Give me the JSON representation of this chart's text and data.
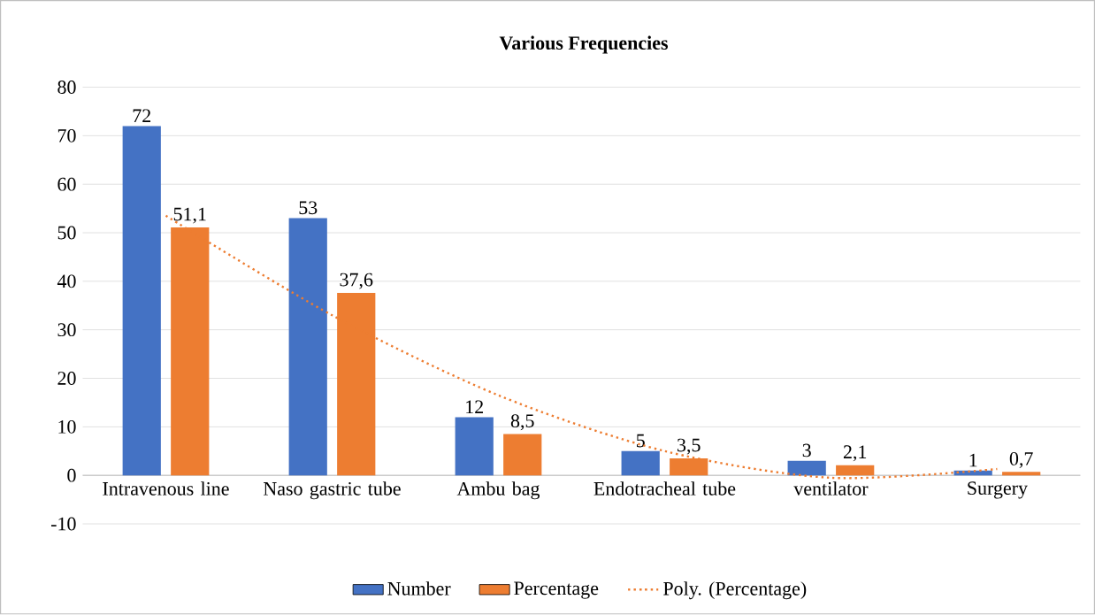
{
  "chart_data": {
    "type": "bar",
    "title": "Various Frequencies",
    "categories": [
      "Intravenous line",
      "Naso gastric tube",
      "Ambu bag",
      "Endotracheal tube",
      "ventilator",
      "Surgery"
    ],
    "series": [
      {
        "name": "Number",
        "color": "#4472c4",
        "values": [
          72,
          53,
          12,
          5,
          3,
          1
        ],
        "value_labels": [
          "72",
          "53",
          "12",
          "5",
          "3",
          "1"
        ]
      },
      {
        "name": "Percentage",
        "color": "#ed7d31",
        "values": [
          51.1,
          37.6,
          8.5,
          3.5,
          2.1,
          0.7
        ],
        "value_labels": [
          "51,1",
          "37,6",
          "8,5",
          "3,5",
          "2,1",
          "0,7"
        ]
      },
      {
        "name": "Poly. (Percentage)",
        "type": "line",
        "color": "#ed7d31",
        "line_style": "dotted",
        "marker": "none",
        "values": [
          53.5,
          33,
          16.5,
          5,
          -0.5,
          1.3
        ]
      }
    ],
    "ylim": [
      -10,
      80
    ],
    "yticks": [
      -10,
      0,
      10,
      20,
      30,
      40,
      50,
      60,
      70,
      80
    ],
    "grid": "y",
    "legend": "bottom"
  }
}
